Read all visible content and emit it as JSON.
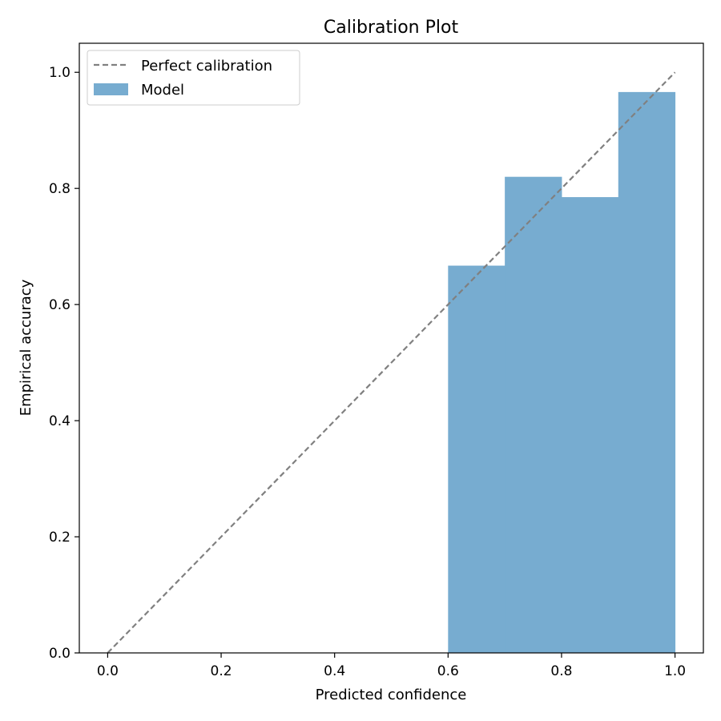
{
  "chart_data": {
    "type": "bar",
    "title": "Calibration Plot",
    "xlabel": "Predicted confidence",
    "ylabel": "Empirical accuracy",
    "xlim": [
      -0.05,
      1.05
    ],
    "ylim": [
      0.0,
      1.05
    ],
    "x_ticks": [
      "0.0",
      "0.2",
      "0.4",
      "0.6",
      "0.8",
      "1.0"
    ],
    "y_ticks": [
      "0.0",
      "0.2",
      "0.4",
      "0.6",
      "0.8",
      "1.0"
    ],
    "grid": false,
    "legend_position": "top-left",
    "bin_width": 0.1,
    "series": [
      {
        "name": "Model",
        "kind": "bar",
        "color": "#77acd0",
        "bins": [
          {
            "x": 0.6,
            "y": 0.667
          },
          {
            "x": 0.7,
            "y": 0.82
          },
          {
            "x": 0.8,
            "y": 0.785
          },
          {
            "x": 0.9,
            "y": 0.966
          }
        ]
      },
      {
        "name": "Perfect calibration",
        "kind": "line",
        "style": "dashed",
        "color": "#808080",
        "points": [
          [
            0.0,
            0.0
          ],
          [
            1.0,
            1.0
          ]
        ]
      }
    ]
  }
}
